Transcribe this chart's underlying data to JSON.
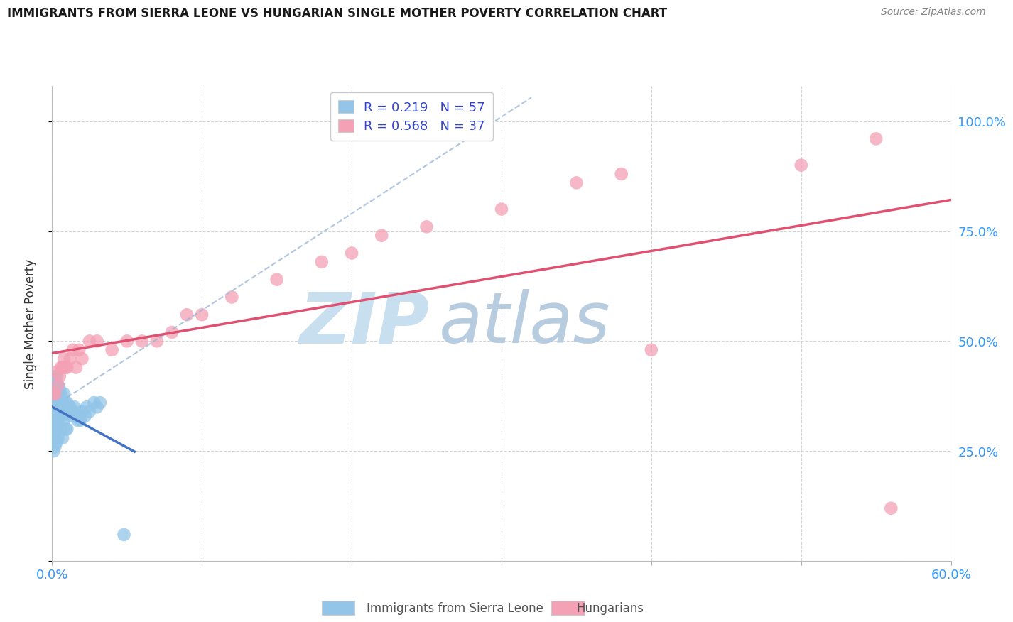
{
  "title": "IMMIGRANTS FROM SIERRA LEONE VS HUNGARIAN SINGLE MOTHER POVERTY CORRELATION CHART",
  "source": "Source: ZipAtlas.com",
  "ylabel": "Single Mother Poverty",
  "xlim": [
    0.0,
    0.6
  ],
  "ylim": [
    0.0,
    1.08
  ],
  "xticks": [
    0.0,
    0.1,
    0.2,
    0.3,
    0.4,
    0.5,
    0.6
  ],
  "xticklabels": [
    "0.0%",
    "",
    "",
    "",
    "",
    "",
    "60.0%"
  ],
  "yticks": [
    0.0,
    0.25,
    0.5,
    0.75,
    1.0
  ],
  "yticklabels_right": [
    "",
    "25.0%",
    "50.0%",
    "75.0%",
    "100.0%"
  ],
  "legend_r1": "R = 0.219",
  "legend_n1": "N = 57",
  "legend_r2": "R = 0.568",
  "legend_n2": "N = 37",
  "color_blue": "#92c5e8",
  "color_pink": "#f4a0b5",
  "color_line_blue": "#4472c4",
  "color_line_pink": "#e05070",
  "color_line_blue_dashed": "#9ab8d8",
  "color_grid": "#d0d0d0",
  "watermark_zip": "ZIP",
  "watermark_atlas": "atlas",
  "watermark_color_zip": "#c8dff0",
  "watermark_color_atlas": "#b8cce0",
  "legend_label1": "Immigrants from Sierra Leone",
  "legend_label2": "Hungarians",
  "blue_x": [
    0.001,
    0.001,
    0.001,
    0.001,
    0.002,
    0.002,
    0.002,
    0.002,
    0.002,
    0.002,
    0.002,
    0.002,
    0.003,
    0.003,
    0.003,
    0.003,
    0.003,
    0.003,
    0.003,
    0.004,
    0.004,
    0.004,
    0.004,
    0.004,
    0.005,
    0.005,
    0.005,
    0.005,
    0.006,
    0.006,
    0.006,
    0.007,
    0.007,
    0.007,
    0.008,
    0.008,
    0.009,
    0.009,
    0.01,
    0.01,
    0.011,
    0.012,
    0.013,
    0.014,
    0.015,
    0.016,
    0.017,
    0.018,
    0.019,
    0.02,
    0.022,
    0.023,
    0.025,
    0.028,
    0.03,
    0.032,
    0.048
  ],
  "blue_y": [
    0.38,
    0.32,
    0.3,
    0.25,
    0.42,
    0.39,
    0.36,
    0.34,
    0.32,
    0.3,
    0.28,
    0.26,
    0.42,
    0.4,
    0.37,
    0.35,
    0.32,
    0.3,
    0.27,
    0.4,
    0.38,
    0.35,
    0.32,
    0.28,
    0.39,
    0.36,
    0.33,
    0.3,
    0.38,
    0.35,
    0.3,
    0.36,
    0.33,
    0.28,
    0.38,
    0.32,
    0.36,
    0.3,
    0.36,
    0.3,
    0.34,
    0.35,
    0.33,
    0.34,
    0.35,
    0.33,
    0.32,
    0.33,
    0.32,
    0.34,
    0.33,
    0.35,
    0.34,
    0.36,
    0.35,
    0.36,
    0.06
  ],
  "pink_x": [
    0.001,
    0.002,
    0.003,
    0.004,
    0.005,
    0.006,
    0.007,
    0.008,
    0.009,
    0.01,
    0.012,
    0.014,
    0.016,
    0.018,
    0.02,
    0.025,
    0.03,
    0.04,
    0.05,
    0.06,
    0.07,
    0.08,
    0.09,
    0.1,
    0.12,
    0.15,
    0.18,
    0.2,
    0.22,
    0.25,
    0.3,
    0.35,
    0.38,
    0.4,
    0.5,
    0.55,
    0.56
  ],
  "pink_y": [
    0.38,
    0.38,
    0.43,
    0.4,
    0.42,
    0.44,
    0.44,
    0.46,
    0.44,
    0.44,
    0.46,
    0.48,
    0.44,
    0.48,
    0.46,
    0.5,
    0.5,
    0.48,
    0.5,
    0.5,
    0.5,
    0.52,
    0.56,
    0.56,
    0.6,
    0.64,
    0.68,
    0.7,
    0.74,
    0.76,
    0.8,
    0.86,
    0.88,
    0.48,
    0.9,
    0.96,
    0.12
  ]
}
